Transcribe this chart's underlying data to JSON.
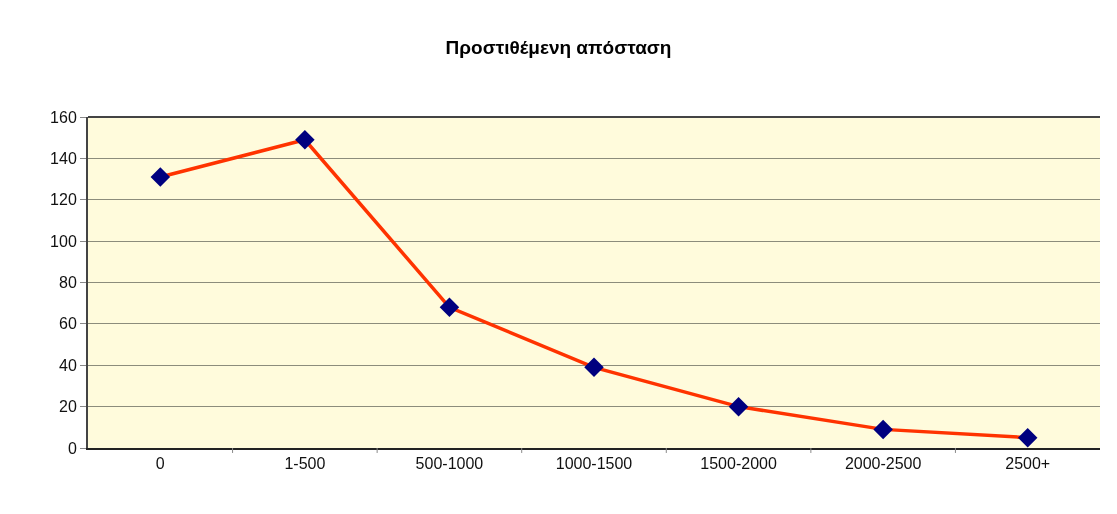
{
  "chart_data": {
    "type": "line",
    "title": "Προστιθέμενη απόσταση",
    "categories": [
      "0",
      "1-500",
      "500-1000",
      "1000-1500",
      "1500-2000",
      "2000-2500",
      "2500+"
    ],
    "series": [
      {
        "color": "#ff3300",
        "values": [
          131,
          149,
          68,
          39,
          20,
          9,
          5
        ]
      }
    ],
    "ylim": [
      0,
      160
    ],
    "yticks": [
      0,
      20,
      40,
      60,
      80,
      100,
      120,
      140,
      160
    ],
    "grid": "y",
    "marker": "diamond",
    "line_style": "solid"
  }
}
